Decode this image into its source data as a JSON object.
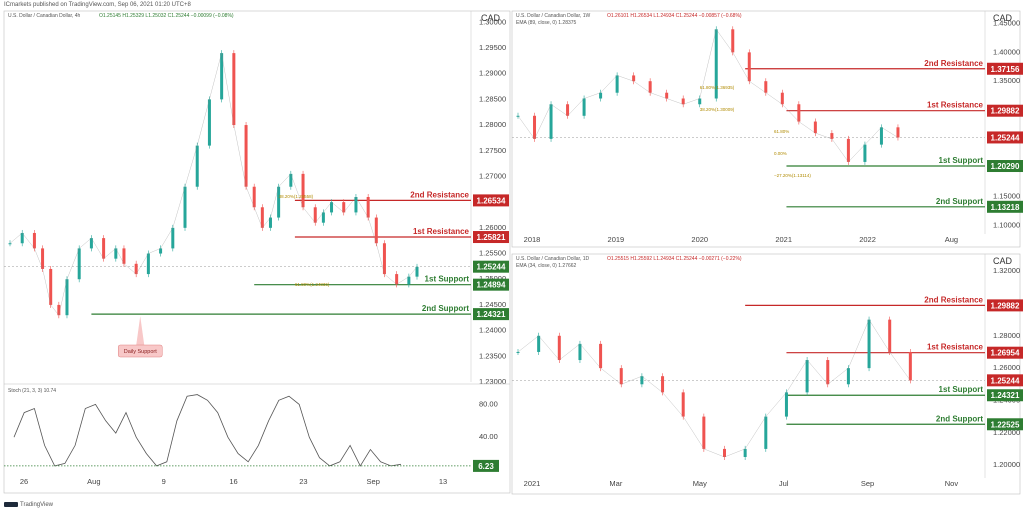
{
  "header": {
    "publisher": "ICmarkets published on TradingView.com, Sep 06, 2021 01:20 UTC+8"
  },
  "footer": {
    "brand": "TradingView"
  },
  "currency_label": "CAD",
  "chart_data": [
    {
      "id": "h4",
      "type": "line",
      "title": "U.S. Dollar / Canadian Dollar, 4h",
      "ohlc": "O1.25145  H1.25329  L1.25032  C1.25244  −0.00099 (−0.08%)",
      "x_ticks": [
        "26",
        "Aug",
        "9",
        "16",
        "23",
        "Sep",
        "13"
      ],
      "y_ticks": [
        "1.30000",
        "1.29500",
        "1.29000",
        "1.28500",
        "1.28000",
        "1.27500",
        "1.27000",
        "1.26500",
        "1.26000",
        "1.25500",
        "1.25000",
        "1.24500",
        "1.24000",
        "1.23500",
        "1.23000"
      ],
      "ylim": [
        1.23,
        1.302
      ],
      "x": [
        0,
        3,
        6,
        8,
        10,
        12,
        14,
        17,
        20,
        23,
        26,
        28,
        31,
        34,
        37,
        40,
        43,
        46,
        49,
        52,
        55,
        58,
        60,
        62,
        64,
        66,
        69,
        72,
        75,
        77,
        79,
        82,
        85,
        88,
        90,
        92,
        95,
        98,
        100
      ],
      "close": [
        1.257,
        1.259,
        1.256,
        1.252,
        1.245,
        1.243,
        1.25,
        1.256,
        1.258,
        1.254,
        1.256,
        1.253,
        1.251,
        1.255,
        1.256,
        1.26,
        1.268,
        1.276,
        1.285,
        1.294,
        1.28,
        1.268,
        1.264,
        1.26,
        1.262,
        1.268,
        1.2705,
        1.264,
        1.261,
        1.263,
        1.265,
        1.263,
        1.266,
        1.262,
        1.257,
        1.251,
        1.249,
        1.2505,
        1.2524
      ],
      "levels": [
        {
          "label": "2nd Resistance",
          "value": 1.26534,
          "value_label": "1.26534",
          "color": "#c62828"
        },
        {
          "label": "1st Resistance",
          "value": 1.25821,
          "value_label": "1.25821",
          "color": "#c62828"
        },
        {
          "label": "1st Support",
          "value": 1.24894,
          "value_label": "1.24894",
          "color": "#2e7d32"
        },
        {
          "label": "2nd Support",
          "value": 1.24321,
          "value_label": "1.24321",
          "color": "#2e7d32"
        }
      ],
      "last_price": {
        "value": 1.25244,
        "label": "1.25244",
        "color": "#2e7d32"
      },
      "fib_labels": [
        "38.20%(1.26558)",
        "61.80%(1.24836)"
      ],
      "annotation": "Daily Support",
      "stoch": {
        "title": "Stoch (21, 3, 3)  10.74",
        "y_ticks": [
          "80.00",
          "40.00"
        ],
        "ylim": [
          0,
          100
        ],
        "values": [
          40,
          70,
          75,
          30,
          5,
          8,
          30,
          75,
          80,
          60,
          45,
          70,
          40,
          20,
          5,
          10,
          60,
          90,
          92,
          85,
          70,
          40,
          20,
          10,
          30,
          60,
          85,
          90,
          80,
          40,
          15,
          5,
          10,
          30,
          5,
          25,
          10,
          5,
          7
        ],
        "last_label": "6.23"
      }
    },
    {
      "id": "weekly",
      "type": "line",
      "title": "U.S. Dollar / Canadian Dollar, 1W",
      "ohlc": "O1.26101  H1.26534  L1.24934  C1.25244  −0.00857 (−0.68%)",
      "ema": "EMA (89, close, 0)  1.28375",
      "x_ticks": [
        "2018",
        "2019",
        "2020",
        "2021",
        "2022",
        "Aug"
      ],
      "y_ticks": [
        "1.45000",
        "1.40000",
        "1.35000",
        "1.30000",
        "1.25000",
        "1.20000",
        "1.15000",
        "1.10000"
      ],
      "ylim": [
        1.085,
        1.47
      ],
      "x": [
        0,
        4,
        8,
        12,
        16,
        20,
        24,
        28,
        32,
        36,
        40,
        44,
        48,
        52,
        56,
        60,
        64,
        68,
        72,
        76,
        80,
        84,
        88,
        92
      ],
      "close": [
        1.29,
        1.25,
        1.31,
        1.29,
        1.32,
        1.33,
        1.36,
        1.35,
        1.33,
        1.32,
        1.31,
        1.32,
        1.44,
        1.4,
        1.35,
        1.33,
        1.31,
        1.28,
        1.26,
        1.25,
        1.21,
        1.24,
        1.27,
        1.2524
      ],
      "levels": [
        {
          "label": "2nd Resistance",
          "value": 1.37156,
          "value_label": "1.37156",
          "color": "#c62828"
        },
        {
          "label": "1st Resistance",
          "value": 1.29882,
          "value_label": "1.29882",
          "color": "#c62828"
        },
        {
          "label": "1st Support",
          "value": 1.2029,
          "value_label": "1.20290",
          "color": "#2e7d32"
        },
        {
          "label": "2nd Support",
          "value": 1.13218,
          "value_label": "1.13218",
          "color": "#2e7d32"
        }
      ],
      "last_price": {
        "value": 1.25244,
        "label": "1.25244",
        "color": "#c62828"
      },
      "fib_labels": [
        "61.80%(1.36935)",
        "38.20%(1.30009)",
        "61.80%",
        "0.00%",
        "−27.20%(1.13114)"
      ]
    },
    {
      "id": "daily",
      "type": "line",
      "title": "U.S. Dollar / Canadian Dollar, 1D",
      "ohlc": "O1.25515  H1.25592  L1.24934  C1.25244  −0.00271 (−0.22%)",
      "ema": "EMA (34, close, 0)  1.27662",
      "x_ticks": [
        "2021",
        "Mar",
        "May",
        "Jul",
        "Sep",
        "Nov"
      ],
      "y_ticks": [
        "1.32000",
        "1.30000",
        "1.28000",
        "1.26000",
        "1.24000",
        "1.22000",
        "1.20000"
      ],
      "ylim": [
        1.192,
        1.33
      ],
      "x": [
        0,
        5,
        10,
        15,
        20,
        25,
        30,
        35,
        40,
        45,
        50,
        55,
        60,
        65,
        70,
        75,
        80,
        85,
        90,
        95
      ],
      "close": [
        1.27,
        1.28,
        1.265,
        1.275,
        1.26,
        1.25,
        1.255,
        1.245,
        1.23,
        1.21,
        1.205,
        1.21,
        1.23,
        1.245,
        1.265,
        1.25,
        1.26,
        1.29,
        1.27,
        1.2524
      ],
      "levels": [
        {
          "label": "2nd Resistance",
          "value": 1.29882,
          "value_label": "1.29882",
          "color": "#c62828"
        },
        {
          "label": "1st Resistance",
          "value": 1.26954,
          "value_label": "1.26954",
          "color": "#c62828"
        },
        {
          "label": "1st Support",
          "value": 1.24321,
          "value_label": "1.24321",
          "color": "#2e7d32"
        },
        {
          "label": "2nd Support",
          "value": 1.22525,
          "value_label": "1.22525",
          "color": "#2e7d32"
        }
      ],
      "last_price": {
        "value": 1.25244,
        "label": "1.25244",
        "color": "#c62828"
      }
    }
  ]
}
